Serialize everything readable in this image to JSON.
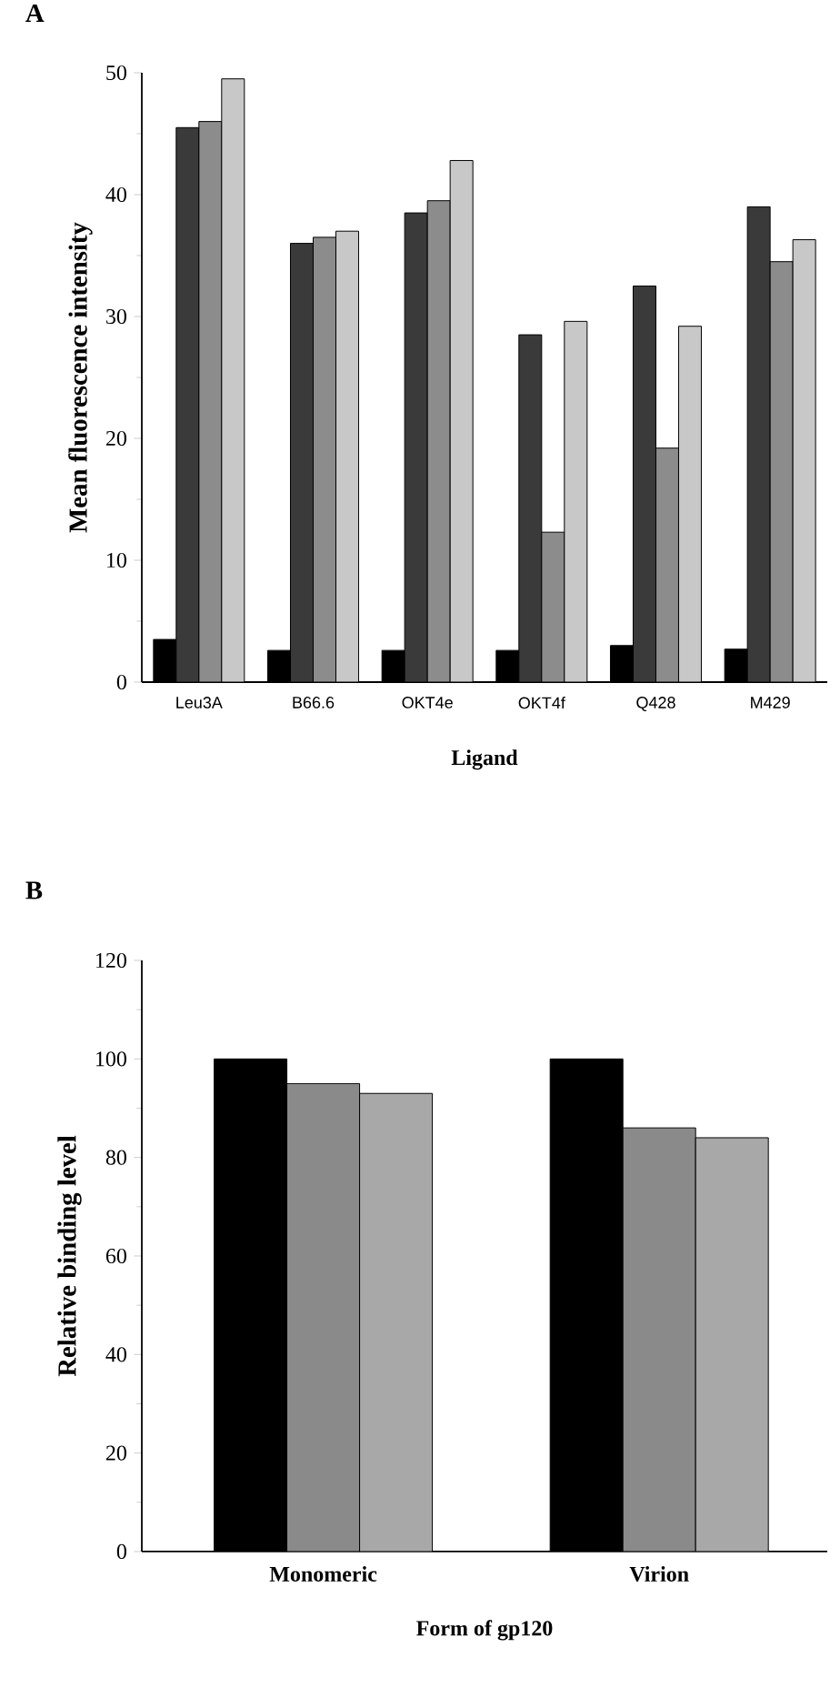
{
  "chart_data": [
    {
      "type": "bar",
      "title": "**A**",
      "xlabel": "Ligand",
      "ylabel": "Mean fluorescence intensity",
      "categories": [
        "Leu3A",
        "B66.6",
        "OKT4e",
        "OKT4f",
        "Q428",
        "M429"
      ],
      "series": [
        {
          "color": "#000000",
          "values": [
            3.5,
            2.6,
            2.6,
            2.6,
            3.0,
            2.7
          ]
        },
        {
          "color": "#3a3a3a",
          "values": [
            45.5,
            36,
            38.5,
            28.5,
            32.5,
            39
          ]
        },
        {
          "color": "#8c8c8c",
          "values": [
            46,
            36.5,
            39.5,
            12.3,
            19.2,
            34.5
          ]
        },
        {
          "color": "#c8c8c8",
          "values": [
            49.5,
            37,
            42.8,
            29.6,
            29.2,
            36.3
          ]
        }
      ],
      "ylim": [
        0,
        50
      ],
      "yticks": [
        0,
        10,
        20,
        30,
        40,
        50
      ],
      "grid": false
    },
    {
      "type": "bar",
      "title": "**B**",
      "xlabel": "Form of gp120",
      "ylabel": "Relative binding level",
      "categories": [
        "Monomeric",
        "Virion"
      ],
      "series": [
        {
          "color": "#000000",
          "values": [
            100,
            100
          ]
        },
        {
          "color": "#8a8a8a",
          "values": [
            95,
            86
          ]
        },
        {
          "color": "#a8a8a8",
          "values": [
            93,
            84
          ]
        }
      ],
      "ylim": [
        0,
        120
      ],
      "yticks": [
        0,
        20,
        40,
        60,
        80,
        100,
        120
      ],
      "grid": false
    }
  ]
}
